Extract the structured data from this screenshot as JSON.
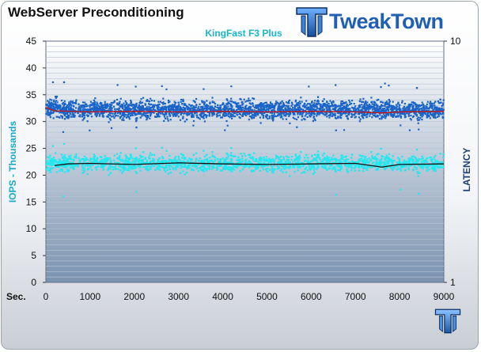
{
  "page": {
    "title": "WebServer Preconditioning"
  },
  "brand": {
    "name": "TweakTown",
    "color": "#1f5fb5"
  },
  "chart_data": {
    "type": "scatter",
    "subtitle": "KingFast F3 Plus",
    "ylabel": "IOPS - Thousands",
    "y2label": "LATENCY",
    "xlabel": "Sec.",
    "xlim": [
      0,
      9000
    ],
    "ylim": [
      0,
      45
    ],
    "xticks": [
      0,
      1000,
      2000,
      3000,
      4000,
      5000,
      6000,
      7000,
      8000,
      9000
    ],
    "yticks": [
      0,
      5,
      10,
      15,
      20,
      25,
      30,
      35,
      40,
      45
    ],
    "y2_scale": "log",
    "y2lim": [
      1,
      10
    ],
    "y2ticks": [
      1,
      10
    ],
    "grid": true,
    "series": [
      {
        "role": "scatter",
        "color": "#1a64c8",
        "x_start": 0,
        "x_end": 9000,
        "center": 32.2,
        "spread": 1.6,
        "outliers_low": 28.0,
        "outliers_high": 37.5
      },
      {
        "role": "scatter",
        "color": "#22e8f0",
        "x_start": 0,
        "x_end": 9000,
        "center": 22.2,
        "spread": 1.5,
        "outliers_low": 16.0,
        "outliers_high": 26.0
      },
      {
        "role": "average",
        "color": "#c81414",
        "x": [
          0,
          200,
          1000,
          2000,
          3000,
          4000,
          5000,
          6000,
          7000,
          7600,
          8000,
          9000
        ],
        "values": [
          32.6,
          32.0,
          31.8,
          31.9,
          31.8,
          31.9,
          31.8,
          31.9,
          31.8,
          31.6,
          31.8,
          31.9
        ]
      },
      {
        "role": "average",
        "color": "#111111",
        "x": [
          200,
          500,
          1000,
          2000,
          3000,
          4000,
          5000,
          6000,
          7000,
          7600,
          8000,
          9000
        ],
        "values": [
          21.8,
          22.1,
          22.2,
          22.0,
          22.3,
          22.1,
          22.0,
          22.1,
          22.2,
          21.5,
          22.0,
          22.1
        ]
      }
    ],
    "colors": {
      "plot_top": "#ffffff",
      "plot_bottom": "#7b93b0",
      "axis_text": "#111111",
      "left_label": "#1aa9c8",
      "right_label": "#1f3f73",
      "subtitle": "#18b7c8"
    }
  }
}
